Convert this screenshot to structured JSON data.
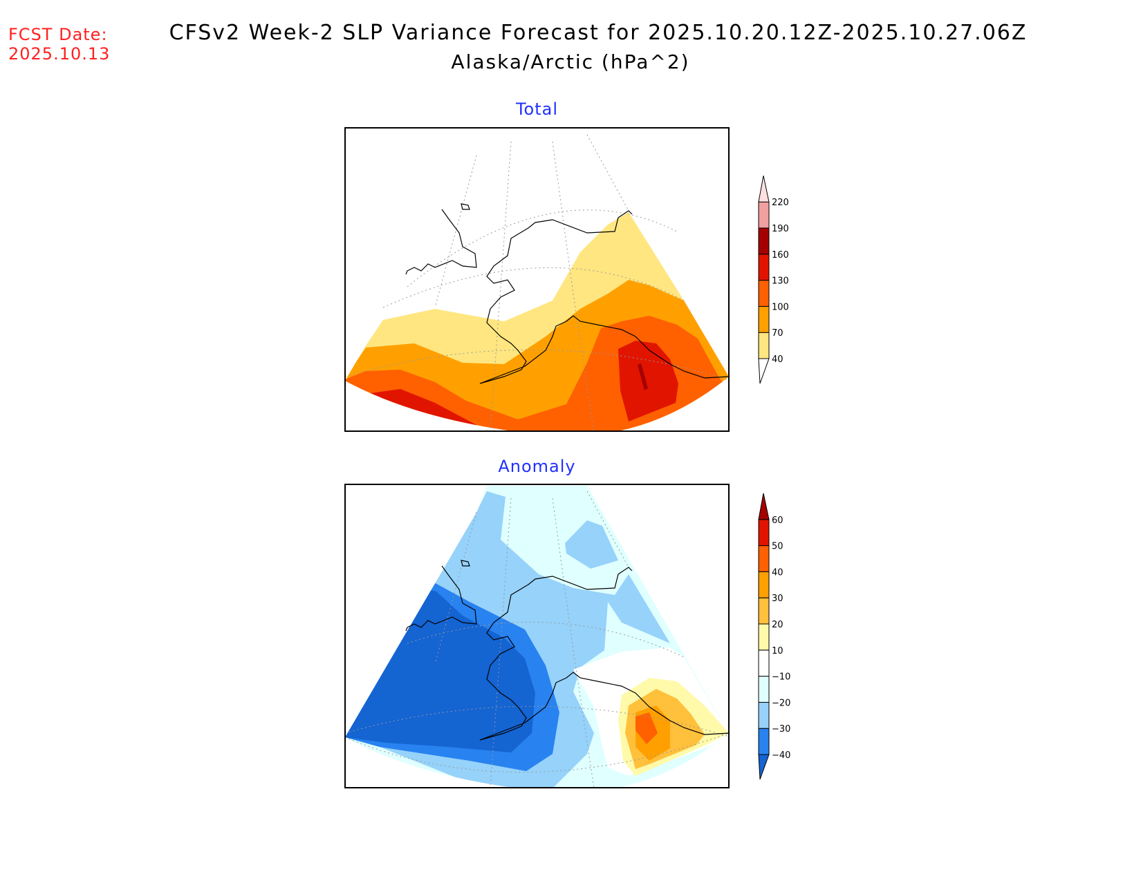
{
  "header": {
    "fcst_label": "FCST Date:",
    "fcst_date": "2025.10.13",
    "title_line1": "CFSv2 Week-2 SLP Variance Forecast for 2025.10.20.12Z-2025.10.27.06Z",
    "title_line2": "Alaska/Arctic (hPa^2)"
  },
  "chart_data": [
    {
      "type": "heatmap",
      "title": "Total",
      "units": "hPa^2",
      "levels": [
        "40",
        "70",
        "100",
        "130",
        "160",
        "190",
        "220"
      ],
      "colors": [
        "#ffffff",
        "#ffe680",
        "#ffa000",
        "#ff6000",
        "#e11400",
        "#a50000",
        "#f0a0a0",
        "#ffe0e0"
      ],
      "max_region": "Gulf of Alaska / southeast Alaska, 160-190",
      "colorbar": "right"
    },
    {
      "type": "heatmap",
      "title": "Anomaly",
      "units": "hPa^2",
      "levels": [
        "-40",
        "-30",
        "-20",
        "-10",
        "10",
        "20",
        "30",
        "40",
        "50",
        "60"
      ],
      "colors": [
        "#1464d2",
        "#2882f0",
        "#96d2fa",
        "#e0ffff",
        "#ffffff",
        "#fffaaa",
        "#ffc03c",
        "#ffa000",
        "#ff6000",
        "#e11400",
        "#a50000"
      ],
      "min_region": "Bering Sea / western Alaska, below -40",
      "max_region": "Southeast Alaska, 40-50",
      "colorbar": "right"
    }
  ]
}
